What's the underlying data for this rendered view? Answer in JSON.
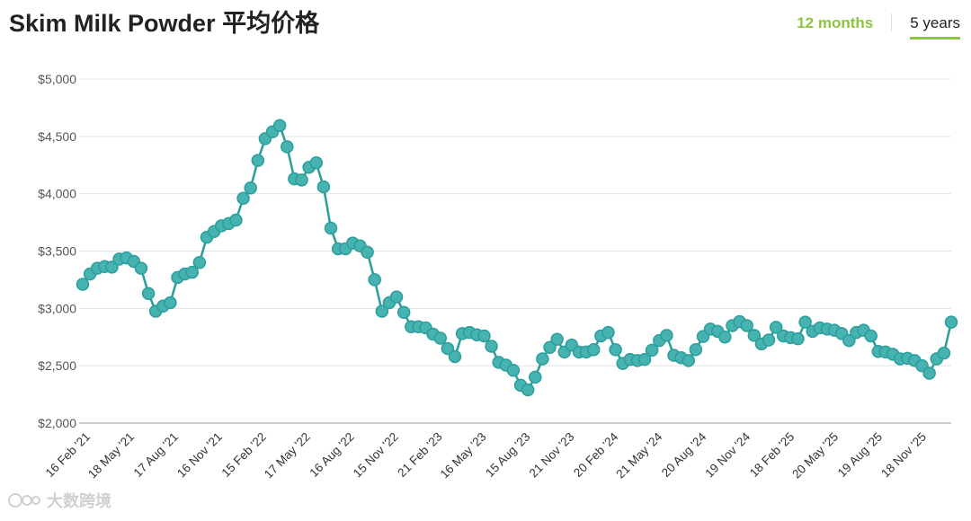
{
  "header": {
    "title": "Skim Milk Powder 平均价格",
    "tabs": [
      {
        "label": "12 months",
        "active": false
      },
      {
        "label": "5 years",
        "active": true
      }
    ]
  },
  "watermark": {
    "text": "大数跨境",
    "icon": "logo-icon"
  },
  "colors": {
    "line": "#2b9e9c",
    "marker": "#46b3b0",
    "accent": "#8cc63f",
    "grid": "#e2e2e2"
  },
  "chart_data": {
    "type": "line",
    "title": "Skim Milk Powder 平均价格",
    "xlabel": "",
    "ylabel": "",
    "ylim": [
      2000,
      5000
    ],
    "yticks": [
      2000,
      2500,
      3000,
      3500,
      4000,
      4500,
      5000
    ],
    "ytick_labels": [
      "$2,000",
      "$2,500",
      "$3,000",
      "$3,500",
      "$4,000",
      "$4,500",
      "$5,000"
    ],
    "grid": true,
    "legend": "none",
    "xtick_labels": [
      "16 Feb '21",
      "18 May '21",
      "17 Aug '21",
      "16 Nov '21",
      "15 Feb '22",
      "17 May '22",
      "16 Aug '22",
      "15 Nov '22",
      "21 Feb '23",
      "16 May '23",
      "15 Aug '23",
      "21 Nov '23",
      "20 Feb '24",
      "21 May '24",
      "20 Aug '24",
      "19 Nov '24",
      "18 Feb '25",
      "20 May '25",
      "19 Aug '25",
      "18 Nov '25"
    ],
    "series": [
      {
        "values": [
          3210,
          3300,
          3350,
          3365,
          3360,
          3430,
          3440,
          3410,
          3350,
          3130,
          2975,
          3020,
          3050,
          3270,
          3300,
          3315,
          3400,
          3620,
          3670,
          3720,
          3740,
          3770,
          3960,
          4050,
          4290,
          4480,
          4540,
          4595,
          4410,
          4130,
          4120,
          4230,
          4270,
          4060,
          3700,
          3520,
          3520,
          3570,
          3545,
          3490,
          3250,
          2975,
          3050,
          3100,
          2965,
          2840,
          2840,
          2830,
          2775,
          2740,
          2650,
          2580,
          2780,
          2790,
          2770,
          2760,
          2670,
          2530,
          2505,
          2460,
          2330,
          2290,
          2400,
          2560,
          2660,
          2730,
          2620,
          2680,
          2620,
          2620,
          2640,
          2760,
          2790,
          2640,
          2520,
          2555,
          2545,
          2555,
          2635,
          2720,
          2765,
          2590,
          2570,
          2545,
          2640,
          2755,
          2820,
          2800,
          2750,
          2850,
          2885,
          2850,
          2765,
          2690,
          2725,
          2835,
          2760,
          2745,
          2735,
          2880,
          2800,
          2830,
          2820,
          2810,
          2780,
          2720,
          2790,
          2810,
          2760,
          2625,
          2620,
          2600,
          2560,
          2565,
          2545,
          2500,
          2435,
          2560,
          2610,
          2880
        ]
      }
    ]
  }
}
